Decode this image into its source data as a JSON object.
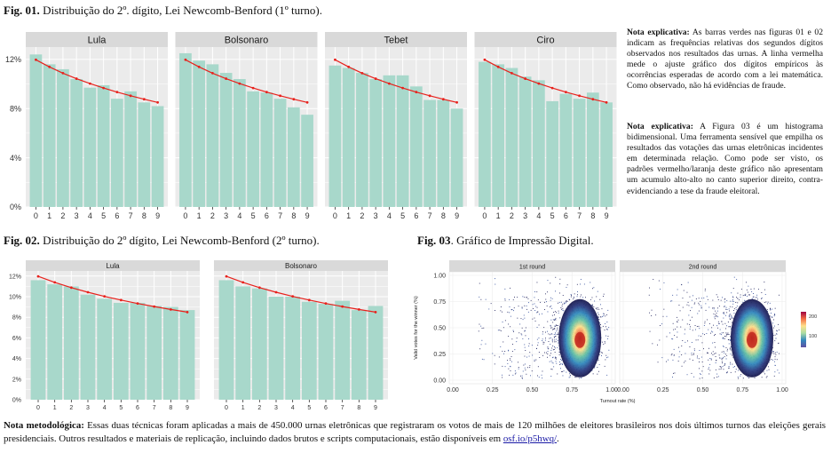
{
  "fig1": {
    "label": "Fig. 01.",
    "caption": "Distribuição do 2º. dígito, Lei Newcomb-Benford (1º turno)."
  },
  "fig2": {
    "label": "Fig. 02.",
    "caption": "Distribuição do 2º dígito, Lei Newcomb-Benford (2º turno)."
  },
  "fig3": {
    "label": "Fig. 03",
    "caption": ". Gráfico de Impressão Digital."
  },
  "note1": {
    "label": "Nota explicativa:",
    "text": " As barras verdes nas figuras 01 e 02 indicam as frequências relativas dos segundos dígitos observados nos resultados das urnas. A linha vermelha mede o ajuste gráfico dos dígitos empíricos às ocorrências esperadas de acordo com a lei matemática. Como observado, não há evidências de fraude."
  },
  "note2": {
    "label": "Nota explicativa:",
    "text": " A Figura 03 é um histograma bidimensional. Uma ferramenta sensível que empilha os resultados das votações das urnas eletrônicas incidentes em determinada relação. Como pode ser visto, os padrões vermelho/laranja deste gráfico não apresentam um acumulo alto-alto no canto superior direito, contra-evidenciando a tese da fraude eleitoral."
  },
  "method": {
    "label": "Nota metodológica:",
    "text": " Essas duas técnicas foram aplicadas a mais de 450.000 urnas eletrônicas que registraram os votos de mais de 120 milhões de eleitores brasileiros nos dois últimos turnos das eleições gerais presidenciais. Outros resultados e materiais de replicação, incluindo dados brutos e scripts computacionais, estão disponíveis em ",
    "link": "osf.io/p5hwq/",
    "end": "."
  },
  "colors": {
    "bar": "#a8d8cb",
    "line": "#e8211c",
    "panel": "#ebebeb",
    "strip": "#d9d9d9",
    "grid": "#ffffff"
  },
  "chart_data": [
    {
      "type": "bar",
      "categories": [
        "0",
        "1",
        "2",
        "3",
        "4",
        "5",
        "6",
        "7",
        "8",
        "9"
      ],
      "ylim": [
        0,
        0.13
      ],
      "yticks": [
        "0%",
        "4%",
        "8%",
        "12%"
      ],
      "series": [
        {
          "name": "Lula",
          "values": [
            0.124,
            0.116,
            0.112,
            0.104,
            0.097,
            0.099,
            0.088,
            0.094,
            0.085,
            0.082
          ]
        },
        {
          "name": "Bolsonaro",
          "values": [
            0.125,
            0.119,
            0.116,
            0.109,
            0.104,
            0.094,
            0.093,
            0.088,
            0.081,
            0.075
          ]
        },
        {
          "name": "Tebet",
          "values": [
            0.115,
            0.113,
            0.109,
            0.104,
            0.107,
            0.107,
            0.098,
            0.087,
            0.087,
            0.08
          ]
        },
        {
          "name": "Ciro",
          "values": [
            0.118,
            0.116,
            0.113,
            0.106,
            0.103,
            0.086,
            0.092,
            0.088,
            0.093,
            0.085
          ]
        }
      ],
      "expected": [
        0.1197,
        0.1139,
        0.1088,
        0.1043,
        0.1003,
        0.0967,
        0.0934,
        0.0904,
        0.0876,
        0.085
      ]
    },
    {
      "type": "bar",
      "categories": [
        "0",
        "1",
        "2",
        "3",
        "4",
        "5",
        "6",
        "7",
        "8",
        "9"
      ],
      "ylim": [
        0,
        0.125
      ],
      "yticks": [
        "0%",
        "2%",
        "4%",
        "6%",
        "8%",
        "10%",
        "12%"
      ],
      "series": [
        {
          "name": "Lula",
          "values": [
            0.116,
            0.112,
            0.11,
            0.102,
            0.098,
            0.094,
            0.094,
            0.091,
            0.09,
            0.087
          ]
        },
        {
          "name": "Bolsonaro",
          "values": [
            0.116,
            0.11,
            0.108,
            0.1,
            0.1,
            0.095,
            0.093,
            0.096,
            0.087,
            0.091
          ]
        }
      ],
      "expected": [
        0.1197,
        0.1139,
        0.1088,
        0.1043,
        0.1003,
        0.0967,
        0.0934,
        0.0904,
        0.0876,
        0.085
      ]
    },
    {
      "type": "heatmap",
      "panels": [
        "1st round",
        "2nd round"
      ],
      "xlabel": "Turnout rate (%)",
      "ylabel": "Valid votes for the winner (%)",
      "xlim": [
        0,
        1
      ],
      "ylim": [
        0,
        1
      ],
      "xticks": [
        "0.00",
        "0.25",
        "0.50",
        "0.75",
        "1.00"
      ],
      "yticks": [
        "0.00",
        "0.25",
        "0.50",
        "0.75",
        "1.00"
      ],
      "legend_ticks": [
        "200",
        "100"
      ],
      "density_centers": [
        {
          "x": 0.8,
          "y": 0.4
        },
        {
          "x": 0.81,
          "y": 0.4
        }
      ]
    }
  ]
}
